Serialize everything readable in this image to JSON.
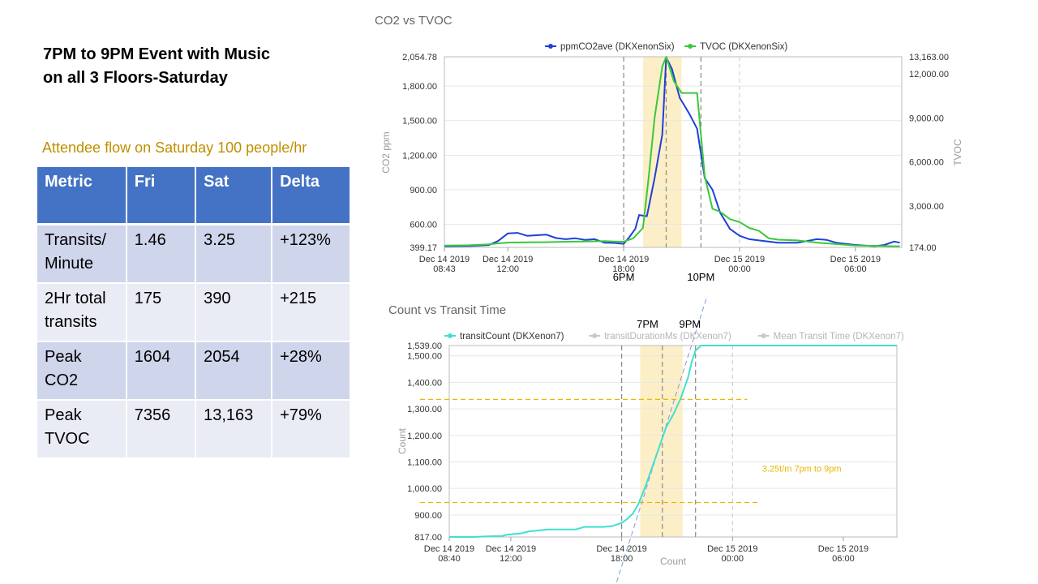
{
  "slide": {
    "title": "7PM to 9PM Event with Music\non all 3 Floors-Saturday",
    "subtitle": "Attendee  flow on Saturday 100 people/hr"
  },
  "table": {
    "headers": [
      "Metric",
      "Fri",
      "Sat",
      "Delta"
    ],
    "rows": [
      [
        "Transits/ Minute",
        "1.46",
        "3.25",
        "+123%"
      ],
      [
        "2Hr total transits",
        "175",
        "390",
        "+215"
      ],
      [
        "Peak CO2",
        "1604",
        "2054",
        "+28%"
      ],
      [
        "Peak TVOC",
        "7356",
        "13,163",
        "+79%"
      ]
    ]
  },
  "chart_data": [
    {
      "type": "line",
      "title": "CO2 vs TVOC",
      "xlabel": "",
      "ylabel": "CO2 ppm",
      "y2label": "TVOC",
      "legend_position": "top-center",
      "xlim": [
        8.7167,
        32.4
      ],
      "x_ticks": [
        {
          "x": 8.7167,
          "label": "Dec 14 2019\n08:43"
        },
        {
          "x": 12,
          "label": "Dec 14 2019\n12:00"
        },
        {
          "x": 18,
          "label": "Dec 14 2019\n18:00"
        },
        {
          "x": 24,
          "label": "Dec 15 2019\n00:00"
        },
        {
          "x": 30,
          "label": "Dec 15 2019\n06:00"
        }
      ],
      "ylim": [
        399.17,
        2054.78
      ],
      "y_ticks": [
        "399.17",
        "600.00",
        "900.00",
        "1,200.00",
        "1,500.00",
        "1,800.00",
        "2,054.78"
      ],
      "y_tick_values": [
        399.17,
        600,
        900,
        1200,
        1500,
        1800,
        2054.78
      ],
      "y2lim": [
        174,
        13163
      ],
      "y2_ticks": [
        "174.00",
        "3,000.00",
        "6,000.00",
        "9,000.00",
        "12,000.00",
        "13,163.00"
      ],
      "y2_tick_values": [
        174,
        3000,
        6000,
        9000,
        12000,
        13163
      ],
      "highlight_band": [
        19,
        21
      ],
      "vlines_dashed": [
        18,
        20.2,
        22
      ],
      "vlines_dashed_grid": [
        24
      ],
      "annotations": [
        {
          "x": 18,
          "text": "6PM"
        },
        {
          "x": 22,
          "text": "10PM"
        }
      ],
      "series": [
        {
          "name": "ppmCO2ave  (DKXenonSix)",
          "color": "#2040d8",
          "axis": "left",
          "x": [
            8.72,
            10,
            11,
            11.5,
            12,
            12.5,
            13,
            13.5,
            14,
            14.5,
            15,
            15.5,
            16,
            16.5,
            17,
            17.5,
            18,
            18.3,
            18.6,
            18.8,
            19.2,
            19.6,
            20,
            20.2,
            20.5,
            20.9,
            21.4,
            21.8,
            22.2,
            22.6,
            23,
            23.5,
            24,
            24.5,
            25,
            26,
            27,
            27.5,
            28,
            28.5,
            29,
            30,
            31,
            31.5,
            32,
            32.3
          ],
          "values": [
            410,
            412,
            418,
            455,
            520,
            525,
            500,
            505,
            510,
            480,
            470,
            478,
            465,
            470,
            440,
            438,
            430,
            490,
            560,
            680,
            670,
            1000,
            1380,
            2050,
            1950,
            1700,
            1560,
            1430,
            1000,
            900,
            700,
            560,
            500,
            470,
            460,
            440,
            440,
            455,
            470,
            465,
            440,
            420,
            410,
            420,
            450,
            440
          ]
        },
        {
          "name": "TVOC  (DKXenonSix)",
          "color": "#3ac83a",
          "axis": "right",
          "x": [
            8.72,
            10,
            11,
            11.5,
            12,
            13,
            14,
            15,
            16,
            17,
            17.5,
            18,
            18.5,
            19,
            19.3,
            19.6,
            20,
            20.2,
            20.6,
            21,
            21.5,
            21.8,
            22.2,
            22.6,
            23,
            23.5,
            24,
            24.5,
            25,
            25.5,
            26,
            27,
            28,
            29,
            30,
            31,
            32,
            32.3
          ],
          "values": [
            300,
            320,
            380,
            450,
            500,
            520,
            530,
            560,
            580,
            600,
            580,
            560,
            800,
            1500,
            5000,
            9000,
            12500,
            13163,
            11500,
            10700,
            10700,
            10700,
            5000,
            2800,
            2600,
            2100,
            1900,
            1500,
            1300,
            800,
            700,
            650,
            500,
            400,
            300,
            280,
            250,
            250
          ]
        }
      ]
    },
    {
      "type": "line",
      "title": "Count vs Transit Time",
      "xlabel": "Count",
      "ylabel": "Count",
      "legend_position": "top-left",
      "xlim": [
        8.6667,
        32.9
      ],
      "x_ticks": [
        {
          "x": 8.6667,
          "label": "Dec 14 2019\n08:40"
        },
        {
          "x": 12,
          "label": "Dec 14 2019\n12:00"
        },
        {
          "x": 18,
          "label": "Dec 14 2019\n18:00"
        },
        {
          "x": 24,
          "label": "Dec 15 2019\n00:00"
        },
        {
          "x": 30,
          "label": "Dec 15 2019\n06:00"
        }
      ],
      "ylim": [
        817,
        1539
      ],
      "y_ticks": [
        "817.00",
        "900.00",
        "1,000.00",
        "1,100.00",
        "1,200.00",
        "1,300.00",
        "1,400.00",
        "1,500.00",
        "1,539.00"
      ],
      "y_tick_values": [
        817,
        900,
        1000,
        1100,
        1200,
        1300,
        1400,
        1500,
        1539
      ],
      "highlight_band": [
        19,
        21.3
      ],
      "vlines_dashed": [
        18,
        20.2,
        22
      ],
      "vlines_dashed_grid": [
        24
      ],
      "annotations": [
        {
          "x": 19.4,
          "text": "7PM"
        },
        {
          "x": 21.7,
          "text": "9PM"
        },
        {
          "x": 25.6,
          "y": 1063,
          "text": "3.25t/m 7pm to 9pm"
        }
      ],
      "hlines": [
        1336,
        947
      ],
      "trend_line": {
        "x": [
          18.5,
          22.6
        ],
        "y": [
          817,
          1720
        ]
      },
      "series": [
        {
          "name": "transitCount  (DKXenon7)",
          "color": "#40e0d0",
          "x": [
            8.67,
            10,
            11,
            11.5,
            11.8,
            12.5,
            13,
            14,
            15,
            15.5,
            16,
            16.5,
            17,
            17.5,
            18,
            18.3,
            18.6,
            18.9,
            19.3,
            19.7,
            20,
            20.4,
            20.8,
            21.2,
            21.6,
            21.8,
            22,
            22.3,
            23,
            24,
            26,
            28,
            30,
            32,
            32.9
          ],
          "values": [
            817,
            817,
            820,
            820,
            826,
            830,
            838,
            845,
            845,
            845,
            855,
            855,
            855,
            858,
            870,
            885,
            905,
            940,
            1010,
            1090,
            1150,
            1230,
            1280,
            1340,
            1420,
            1480,
            1520,
            1539,
            1539,
            1539,
            1539,
            1539,
            1539,
            1539,
            1539
          ]
        },
        {
          "name": "transitDurationMs  (DKXenon7)",
          "color": "#c8c8c8",
          "x": [],
          "values": []
        },
        {
          "name": "Mean Transit Time  (DKXenon7)",
          "color": "#c8c8c8",
          "x": [],
          "values": []
        }
      ]
    }
  ]
}
